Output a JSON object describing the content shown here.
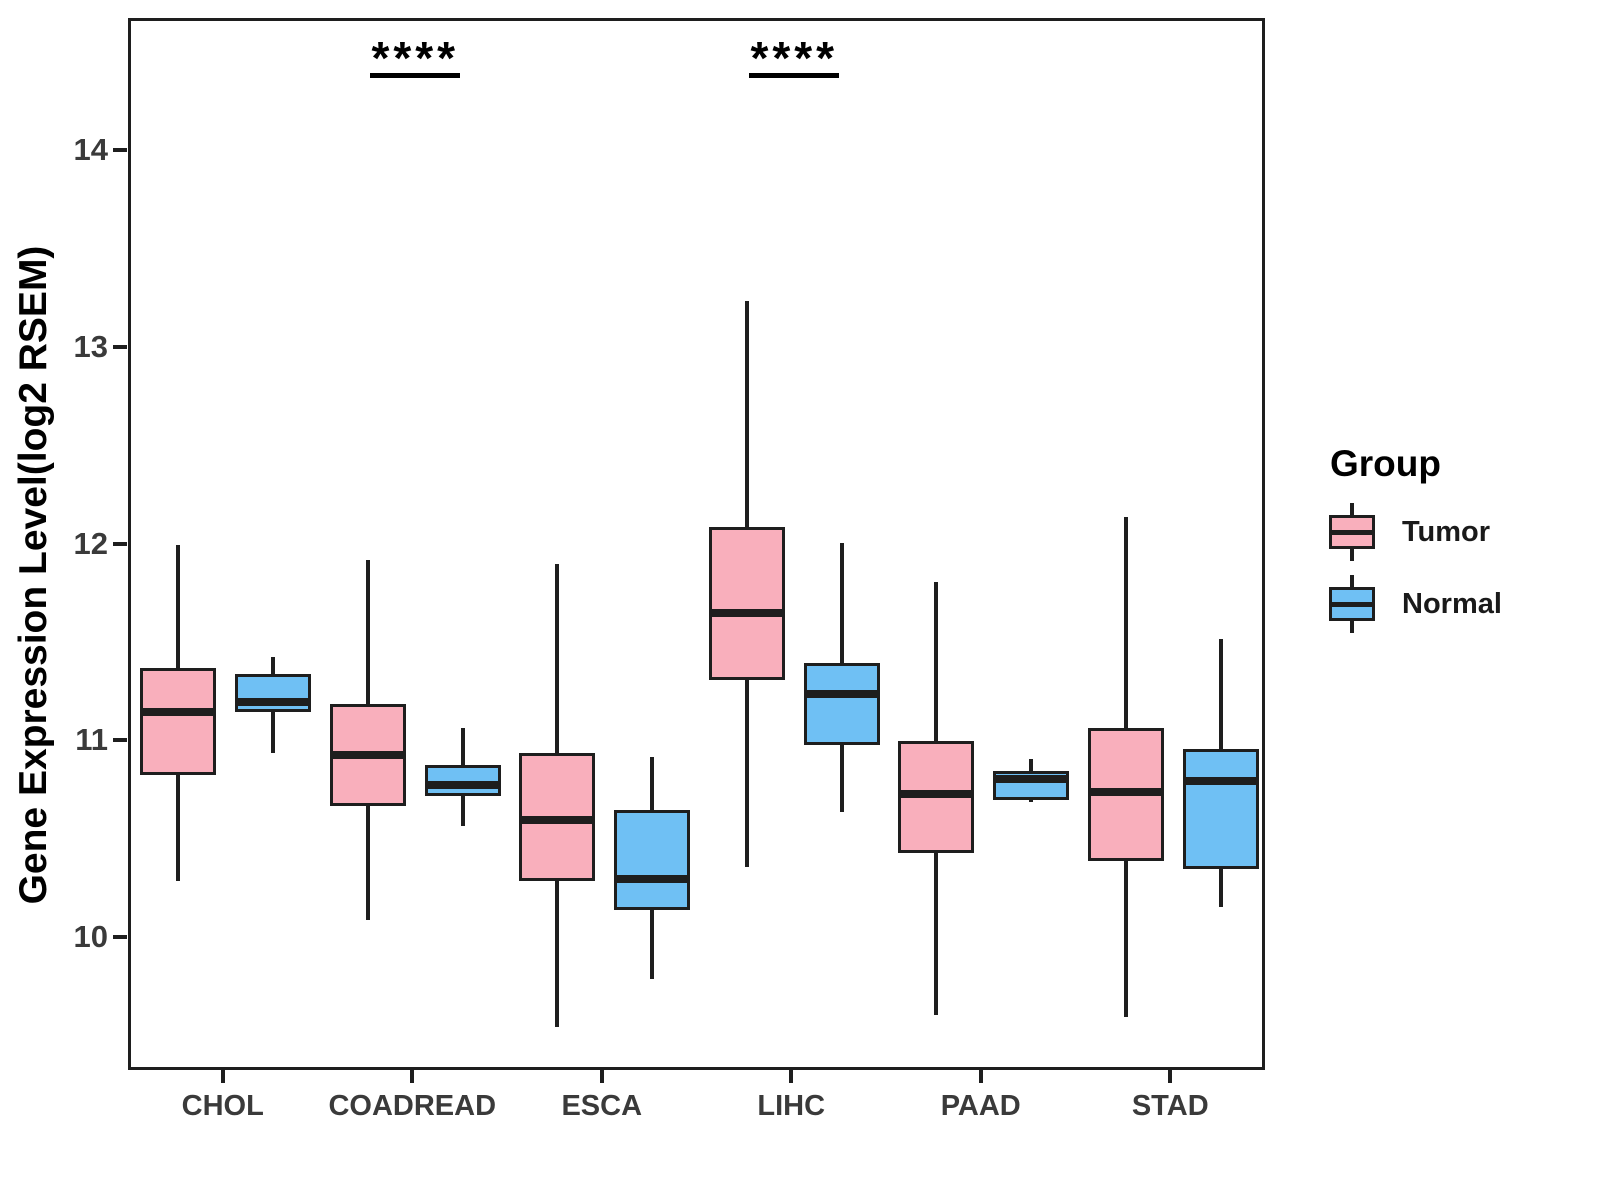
{
  "y_axis": {
    "title": "Gene Expression Level(log2 RSEM)",
    "ticks": [
      "10",
      "11",
      "12",
      "13",
      "14"
    ]
  },
  "x_axis": {
    "categories": [
      "CHOL",
      "COADREAD",
      "ESCA",
      "LIHC",
      "PAAD",
      "STAD"
    ]
  },
  "legend": {
    "title": "Group",
    "entries": [
      {
        "label": "Tumor",
        "color": "#F9AFBC"
      },
      {
        "label": "Normal",
        "color": "#6FC0F4"
      }
    ]
  },
  "colors": {
    "tumor_fill": "#F9AFBC",
    "normal_fill": "#6FC0F4",
    "line": "#1E1E1E",
    "axis_text": "#3A3A3A",
    "background": "#ffffff"
  },
  "chart_data": {
    "type": "boxplot",
    "title": "",
    "xlabel": "",
    "ylabel": "Gene Expression Level(log2 RSEM)",
    "grid": false,
    "legend_position": "right",
    "y_ticks": [
      10,
      11,
      12,
      13,
      14
    ],
    "y_domain": [
      9.32,
      14.67
    ],
    "categories": [
      "CHOL",
      "COADREAD",
      "ESCA",
      "LIHC",
      "PAAD",
      "STAD"
    ],
    "series": [
      {
        "name": "Tumor",
        "fill": "#F9AFBC",
        "boxes": [
          {
            "min": 10.3,
            "q1": 10.84,
            "median": 11.16,
            "q3": 11.38,
            "max": 12.01
          },
          {
            "min": 10.1,
            "q1": 10.68,
            "median": 10.94,
            "q3": 11.2,
            "max": 11.93
          },
          {
            "min": 9.56,
            "q1": 10.3,
            "median": 10.61,
            "q3": 10.95,
            "max": 11.91
          },
          {
            "min": 10.37,
            "q1": 11.32,
            "median": 11.66,
            "q3": 12.1,
            "max": 13.25
          },
          {
            "min": 9.62,
            "q1": 10.44,
            "median": 10.74,
            "q3": 11.01,
            "max": 11.82
          },
          {
            "min": 9.61,
            "q1": 10.4,
            "median": 10.75,
            "q3": 11.08,
            "max": 12.15
          }
        ]
      },
      {
        "name": "Normal",
        "fill": "#6FC0F4",
        "boxes": [
          {
            "min": 10.95,
            "q1": 11.16,
            "median": 11.21,
            "q3": 11.35,
            "max": 11.44
          },
          {
            "min": 10.58,
            "q1": 10.73,
            "median": 10.79,
            "q3": 10.89,
            "max": 11.08
          },
          {
            "min": 9.8,
            "q1": 10.15,
            "median": 10.31,
            "q3": 10.66,
            "max": 10.93
          },
          {
            "min": 10.65,
            "q1": 10.99,
            "median": 11.25,
            "q3": 11.41,
            "max": 12.02
          },
          {
            "min": 10.7,
            "q1": 10.71,
            "median": 10.82,
            "q3": 10.86,
            "max": 10.92
          },
          {
            "min": 10.17,
            "q1": 10.36,
            "median": 10.81,
            "q3": 10.97,
            "max": 11.53
          }
        ]
      }
    ],
    "significance": [
      {
        "category": "COADREAD",
        "label": "****"
      },
      {
        "category": "LIHC",
        "label": "****"
      }
    ]
  }
}
